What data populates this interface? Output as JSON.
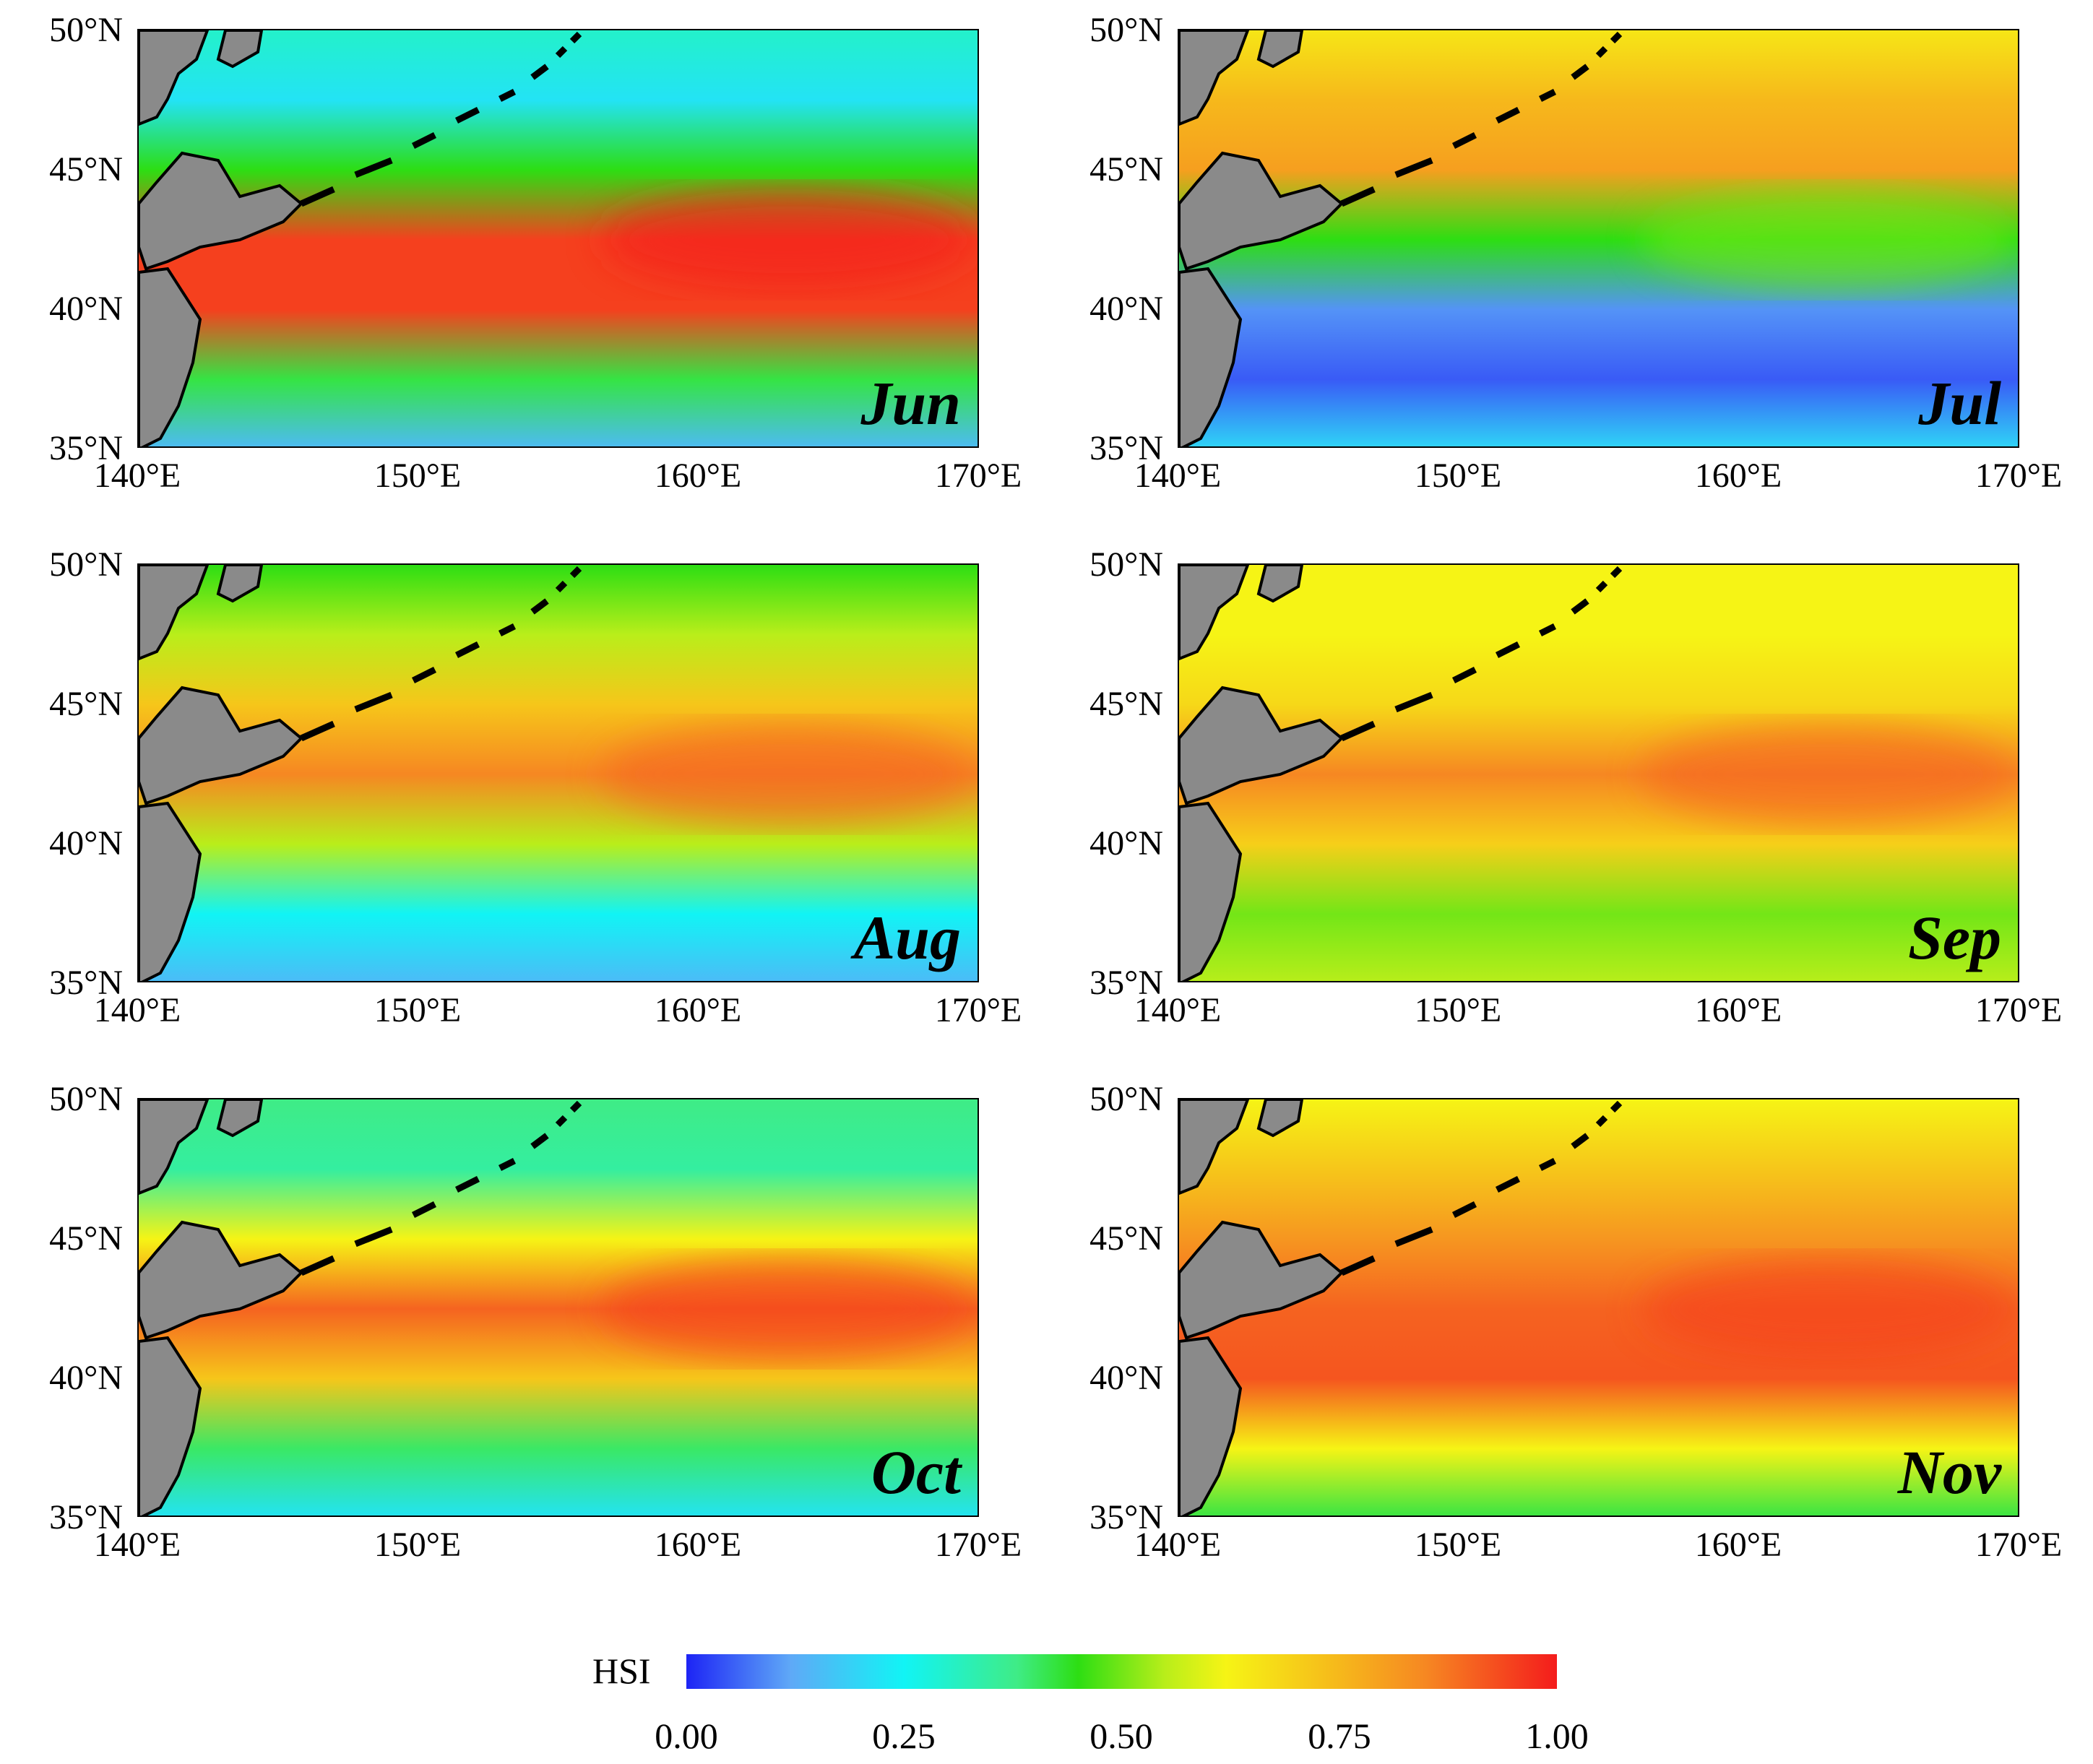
{
  "panels": [
    {
      "month": "Jun",
      "key": "jun",
      "pattern": [
        0.3,
        0.22,
        0.45,
        0.95,
        0.95,
        0.42,
        0.15
      ]
    },
    {
      "month": "Jul",
      "key": "jul",
      "pattern": [
        0.65,
        0.75,
        0.8,
        0.45,
        0.1,
        0.05,
        0.2
      ]
    },
    {
      "month": "Aug",
      "key": "aug",
      "pattern": [
        0.45,
        0.55,
        0.72,
        0.85,
        0.55,
        0.25,
        0.15
      ]
    },
    {
      "month": "Sep",
      "key": "sep",
      "pattern": [
        0.62,
        0.62,
        0.68,
        0.85,
        0.7,
        0.5,
        0.55
      ]
    },
    {
      "month": "Oct",
      "key": "oct",
      "pattern": [
        0.38,
        0.35,
        0.62,
        0.9,
        0.72,
        0.4,
        0.22
      ]
    },
    {
      "month": "Nov",
      "key": "nov",
      "pattern": [
        0.62,
        0.72,
        0.82,
        0.9,
        0.92,
        0.62,
        0.42
      ]
    }
  ],
  "axes": {
    "y_ticks": [
      "50°N",
      "45°N",
      "40°N",
      "35°N"
    ],
    "x_ticks": [
      "140°E",
      "150°E",
      "160°E",
      "170°E"
    ]
  },
  "legend": {
    "label": "HSI",
    "ticks": [
      "0.00",
      "0.25",
      "0.50",
      "0.75",
      "1.00"
    ],
    "colors": {
      "low": "#1d24f5",
      "q1": "#11f4f5",
      "mid": "#2dde13",
      "q3": "#f6b81b",
      "high": "#f41c1c"
    }
  },
  "land_color": "#8a8a8a",
  "coast_color": "#000000"
}
